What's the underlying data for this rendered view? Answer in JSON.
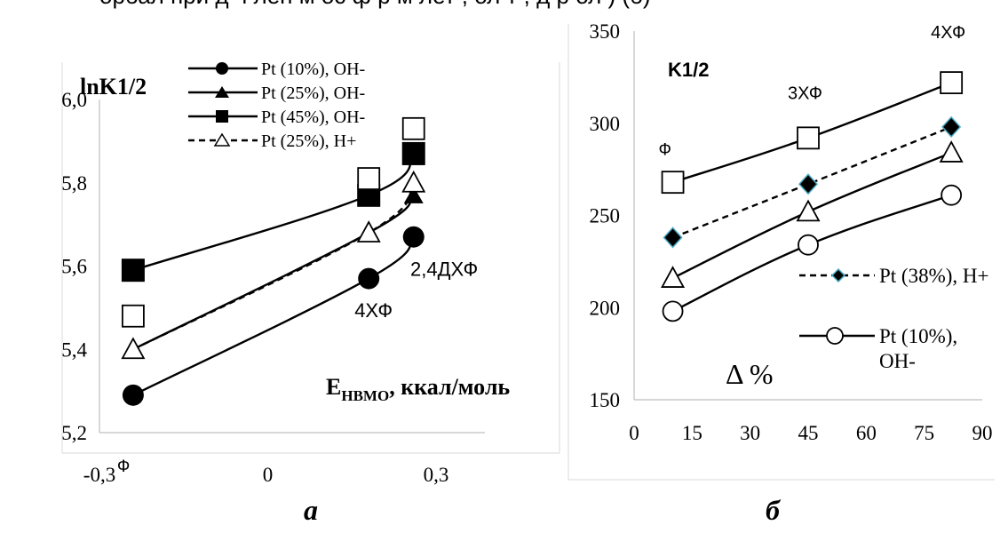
{
  "header_fragment": "орбал при д ч лен м ос ф р м лет , ол т , д р ол ) (б)",
  "chart_data": [
    {
      "type": "line",
      "panel_label": "а",
      "title": "lnK1/2",
      "xlabel": "EНВМО, ккал/моль",
      "xlabel_main": "E",
      "xlabel_sub": "НВМО",
      "xlabel_rest": ", ккал/моль",
      "ylabel": "",
      "xlim": [
        -0.3,
        0.3
      ],
      "ylim": [
        5.2,
        6.0
      ],
      "x_ticks": [
        "-0,3",
        "0",
        "0,3"
      ],
      "y_ticks": [
        "5,2",
        "5,4",
        "5,6",
        "5,8",
        "6,0"
      ],
      "x_tick_values": [
        -0.3,
        0,
        0.3
      ],
      "y_tick_values": [
        5.2,
        5.4,
        5.6,
        5.8,
        6.0
      ],
      "annotations": [
        {
          "text": "Ф",
          "x": -0.24,
          "y": 5.2
        },
        {
          "text": "4ХФ",
          "x": 0.18,
          "y": 5.52
        },
        {
          "text": "2,4ДХФ",
          "x": 0.27,
          "y": 5.56
        }
      ],
      "series": [
        {
          "name": "Pt (10%), OH-",
          "marker": "circle-filled",
          "dashed": false,
          "x": [
            -0.24,
            0.18,
            0.26
          ],
          "y": [
            5.29,
            5.57,
            5.67
          ]
        },
        {
          "name": "Pt (25%), OH-",
          "marker": "triangle-filled",
          "dashed": false,
          "x": [
            -0.24,
            0.18,
            0.26
          ],
          "y": [
            5.4,
            5.68,
            5.77
          ]
        },
        {
          "name": "Pt (45%), OH-",
          "marker": "square-filled",
          "dashed": false,
          "x": [
            -0.24,
            0.18,
            0.26
          ],
          "y": [
            5.59,
            5.77,
            5.87
          ]
        },
        {
          "name": "Pt (25%), H+",
          "marker": "triangle-open",
          "dashed": true,
          "x": [
            -0.24,
            0.18,
            0.26
          ],
          "y": [
            5.4,
            5.68,
            5.8
          ]
        }
      ],
      "extra_points": [
        {
          "marker": "square-open",
          "x": [
            -0.24,
            0.18,
            0.26
          ],
          "y": [
            5.48,
            5.81,
            5.93
          ]
        }
      ]
    },
    {
      "type": "line",
      "panel_label": "б",
      "title": "K1/2",
      "xlabel": "Δ %",
      "ylabel": "",
      "xlim": [
        0,
        90
      ],
      "ylim": [
        150,
        350
      ],
      "x_ticks": [
        "0",
        "15",
        "30",
        "45",
        "60",
        "75",
        "90"
      ],
      "y_ticks": [
        "150",
        "200",
        "250",
        "300",
        "350"
      ],
      "x_tick_values": [
        0,
        15,
        30,
        45,
        60,
        75,
        90
      ],
      "y_tick_values": [
        150,
        200,
        250,
        300,
        350
      ],
      "annotations": [
        {
          "text": "Ф",
          "x": 10,
          "y": 280
        },
        {
          "text": "3ХФ",
          "x": 45,
          "y": 305
        },
        {
          "text": "4ХФ",
          "x": 82,
          "y": 337
        }
      ],
      "series": [
        {
          "name": "Pt (38%), H+",
          "marker": "diamond-filled",
          "dashed": true,
          "x": [
            10,
            45,
            82
          ],
          "y": [
            238,
            267,
            298
          ]
        },
        {
          "name": "Pt (10%), OH-",
          "marker": "circle-open",
          "dashed": false,
          "x": [
            10,
            45,
            82
          ],
          "y": [
            198,
            234,
            261
          ]
        }
      ],
      "extra_lines": [
        {
          "marker": "square-open",
          "dashed": false,
          "x": [
            10,
            45,
            82
          ],
          "y": [
            268,
            292,
            322
          ]
        },
        {
          "marker": "triangle-open",
          "dashed": false,
          "x": [
            10,
            45,
            82
          ],
          "y": [
            216,
            252,
            284
          ]
        }
      ]
    }
  ]
}
